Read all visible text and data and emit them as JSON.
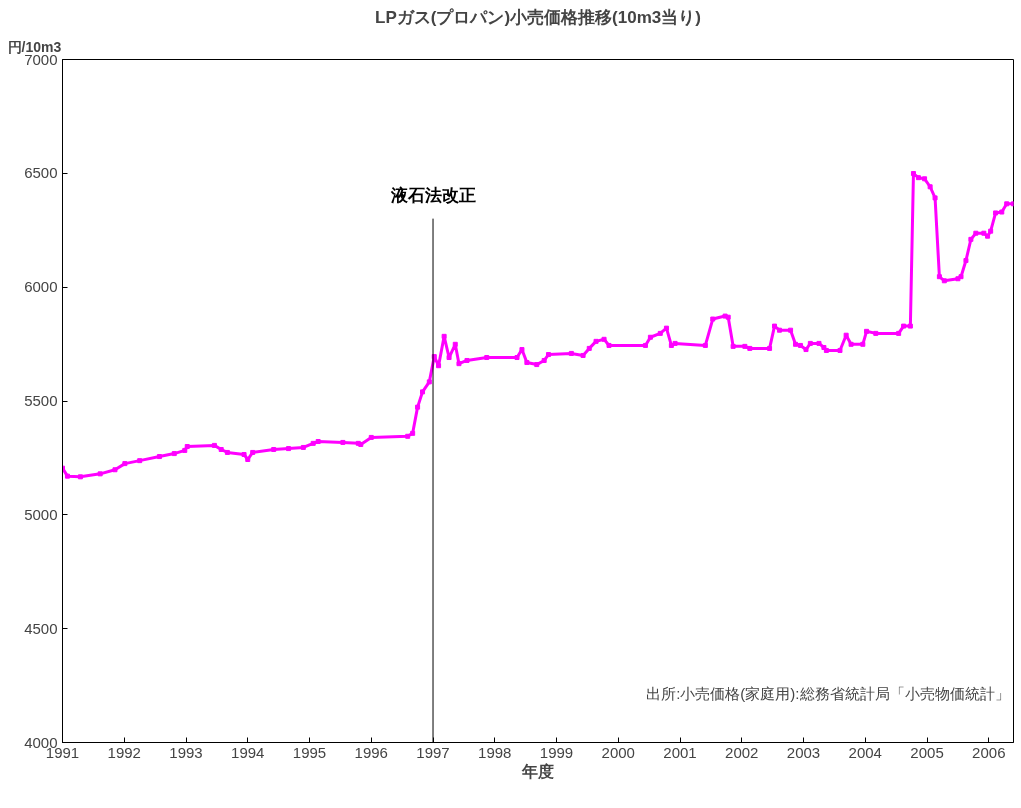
{
  "chart_data": {
    "type": "line",
    "title": "LPガス(プロパン)小売価格推移(10m3当り)",
    "xlabel": "年度",
    "ylabel": "円/10m3",
    "marker": "square",
    "x": [
      1991.0,
      1991.08,
      1991.29,
      1991.61,
      1991.85,
      1992.01,
      1992.25,
      1992.57,
      1992.81,
      1992.98,
      1993.02,
      1993.46,
      1993.57,
      1993.67,
      1993.94,
      1994.0,
      1994.08,
      1994.42,
      1994.66,
      1994.9,
      1995.06,
      1995.14,
      1995.54,
      1995.79,
      1995.83,
      1996.0,
      1996.59,
      1996.67,
      1996.75,
      1996.83,
      1996.94,
      1997.02,
      1997.09,
      1997.18,
      1997.26,
      1997.36,
      1997.42,
      1997.55,
      1997.87,
      1998.36,
      1998.44,
      1998.52,
      1998.68,
      1998.8,
      1998.87,
      1999.24,
      1999.43,
      1999.53,
      1999.64,
      1999.77,
      1999.85,
      2000.44,
      2000.52,
      2000.68,
      2000.78,
      2000.86,
      2000.92,
      2001.41,
      2001.53,
      2001.73,
      2001.78,
      2001.86,
      2002.05,
      2002.13,
      2002.45,
      2002.53,
      2002.61,
      2002.79,
      2002.87,
      2002.95,
      2003.04,
      2003.11,
      2003.25,
      2003.33,
      2003.37,
      2003.59,
      2003.69,
      2003.77,
      2003.96,
      2004.02,
      2004.17,
      2004.54,
      2004.62,
      2004.73,
      2004.78,
      2004.86,
      2004.96,
      2005.05,
      2005.13,
      2005.2,
      2005.28,
      2005.5,
      2005.55,
      2005.63,
      2005.71,
      2005.79,
      2005.92,
      2005.98,
      2006.03,
      2006.11,
      2006.21,
      2006.29,
      2006.4
    ],
    "series": [
      {
        "color": "#ff00ff",
        "values": [
          5205,
          5170,
          5167,
          5180,
          5198,
          5225,
          5238,
          5256,
          5269,
          5283,
          5300,
          5305,
          5287,
          5274,
          5265,
          5243,
          5274,
          5287,
          5291,
          5296,
          5314,
          5322,
          5318,
          5314,
          5309,
          5340,
          5345,
          5358,
          5473,
          5540,
          5584,
          5695,
          5655,
          5784,
          5691,
          5749,
          5664,
          5678,
          5691,
          5691,
          5726,
          5669,
          5660,
          5678,
          5704,
          5709,
          5700,
          5731,
          5762,
          5771,
          5744,
          5744,
          5780,
          5797,
          5820,
          5744,
          5753,
          5744,
          5860,
          5873,
          5868,
          5740,
          5740,
          5731,
          5731,
          5829,
          5811,
          5811,
          5749,
          5744,
          5726,
          5753,
          5753,
          5735,
          5722,
          5722,
          5789,
          5749,
          5749,
          5806,
          5797,
          5797,
          5829,
          5829,
          6499,
          6481,
          6476,
          6441,
          6392,
          6046,
          6028,
          6037,
          6046,
          6117,
          6210,
          6237,
          6237,
          6224,
          6246,
          6326,
          6330,
          6366,
          6366
        ]
      }
    ],
    "xlim": [
      1991,
      2006.4
    ],
    "ylim": [
      4000,
      7000
    ],
    "xticks": [
      1991,
      1992,
      1993,
      1994,
      1995,
      1996,
      1997,
      1998,
      1999,
      2000,
      2001,
      2002,
      2003,
      2004,
      2005,
      2006
    ],
    "yticks": [
      4000,
      4500,
      5000,
      5500,
      6000,
      6500,
      7000
    ],
    "ref_lines": [
      {
        "axis": "x",
        "value": 1997,
        "label": "液石法改正",
        "color": "#000000"
      }
    ],
    "annotations": [
      "出所:小売価格(家庭用):総務省統計局「小売物価統計」"
    ]
  }
}
